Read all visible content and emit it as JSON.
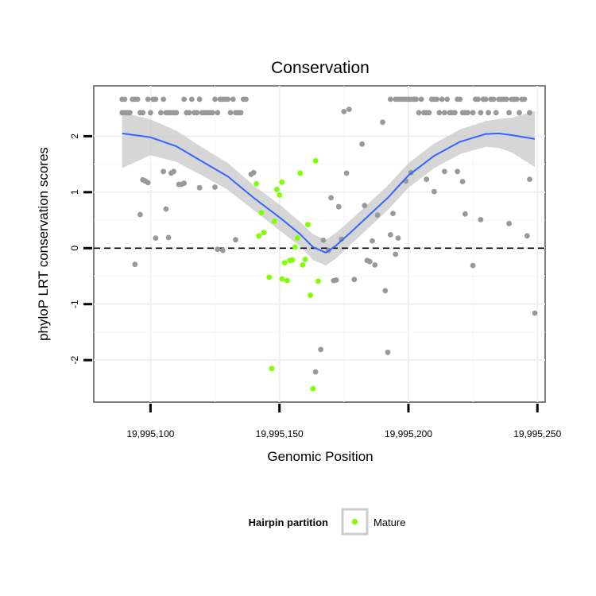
{
  "chart_data": {
    "type": "scatter",
    "title": "Conservation",
    "xlabel": "Genomic Position",
    "ylabel": "phyloP LRT conservation scores",
    "xlim": [
      19995078,
      19995253
    ],
    "ylim": [
      -2.75,
      2.9
    ],
    "x_ticks": [
      19995100,
      19995150,
      19995200,
      19995250
    ],
    "x_tick_labels": [
      "19,995,100",
      "19,995,150",
      "19,995,200",
      "19,995,250"
    ],
    "y_ticks": [
      -2,
      -1,
      0,
      1,
      2
    ],
    "y_tick_labels": [
      "-2",
      "-1",
      "0",
      "1",
      "2"
    ],
    "grid": true,
    "reference_line": {
      "y": 0,
      "style": "dashed"
    },
    "legend": {
      "title": "Hairpin partition",
      "placement": "bottom",
      "entries": [
        "Mature"
      ]
    },
    "colors": {
      "other": "#999999",
      "mature": "#80ff00",
      "smooth": "#3366ff",
      "band": "#cccccc"
    },
    "series": [
      {
        "group": "other",
        "points": [
          [
            19995089,
            2.66
          ],
          [
            19995089,
            2.42
          ],
          [
            19995090,
            2.66
          ],
          [
            19995090,
            2.42
          ],
          [
            19995091,
            2.42
          ],
          [
            19995092,
            2.42
          ],
          [
            19995093,
            2.66
          ],
          [
            19995094,
            2.66
          ],
          [
            19995095,
            2.66
          ],
          [
            19995096,
            2.42
          ],
          [
            19995097,
            2.42
          ],
          [
            19995099,
            2.66
          ],
          [
            19995100,
            2.42
          ],
          [
            19995101,
            2.66
          ],
          [
            19995102,
            2.66
          ],
          [
            19995104,
            2.42
          ],
          [
            19995105,
            2.66
          ],
          [
            19995106,
            2.42
          ],
          [
            19995107,
            2.42
          ],
          [
            19995108,
            2.42
          ],
          [
            19995109,
            2.42
          ],
          [
            19995110,
            2.42
          ],
          [
            19995113,
            2.66
          ],
          [
            19995114,
            2.42
          ],
          [
            19995115,
            2.42
          ],
          [
            19995116,
            2.66
          ],
          [
            19995117,
            2.42
          ],
          [
            19995118,
            2.42
          ],
          [
            19995119,
            2.66
          ],
          [
            19995120,
            2.42
          ],
          [
            19995121,
            2.42
          ],
          [
            19995122,
            2.42
          ],
          [
            19995123,
            2.42
          ],
          [
            19995124,
            2.42
          ],
          [
            19995125,
            2.66
          ],
          [
            19995126,
            2.42
          ],
          [
            19995127,
            2.66
          ],
          [
            19995128,
            2.66
          ],
          [
            19995129,
            2.66
          ],
          [
            19995130,
            2.66
          ],
          [
            19995131,
            2.42
          ],
          [
            19995132,
            2.66
          ],
          [
            19995133,
            2.42
          ],
          [
            19995134,
            2.42
          ],
          [
            19995135,
            2.42
          ],
          [
            19995136,
            2.66
          ],
          [
            19995137,
            2.66
          ],
          [
            19995094,
            -0.29
          ],
          [
            19995096,
            0.6
          ],
          [
            19995097,
            1.22
          ],
          [
            19995098,
            1.2
          ],
          [
            19995099,
            1.17
          ],
          [
            19995102,
            0.18
          ],
          [
            19995105,
            1.37
          ],
          [
            19995106,
            0.7
          ],
          [
            19995107,
            0.19
          ],
          [
            19995108,
            1.34
          ],
          [
            19995109,
            1.37
          ],
          [
            19995111,
            1.14
          ],
          [
            19995112,
            1.14
          ],
          [
            19995113,
            1.16
          ],
          [
            19995119,
            1.08
          ],
          [
            19995125,
            1.09
          ],
          [
            19995126,
            -0.02
          ],
          [
            19995128,
            -0.04
          ],
          [
            19995133,
            0.15
          ],
          [
            19995139,
            1.32
          ],
          [
            19995140,
            1.35
          ],
          [
            19995167,
            0.14
          ],
          [
            19995169,
            -0.04
          ],
          [
            19995170,
            0.9
          ],
          [
            19995171,
            -0.58
          ],
          [
            19995172,
            -0.57
          ],
          [
            19995173,
            0.74
          ],
          [
            19995174,
            0.16
          ],
          [
            19995175,
            2.44
          ],
          [
            19995176,
            1.34
          ],
          [
            19995177,
            2.48
          ],
          [
            19995179,
            -0.56
          ],
          [
            19995182,
            1.86
          ],
          [
            19995183,
            0.76
          ],
          [
            19995184,
            -0.22
          ],
          [
            19995185,
            -0.24
          ],
          [
            19995186,
            0.13
          ],
          [
            19995187,
            -0.3
          ],
          [
            19995188,
            0.59
          ],
          [
            19995190,
            2.25
          ],
          [
            19995191,
            -0.76
          ],
          [
            19995192,
            -1.86
          ],
          [
            19995193,
            0.24
          ],
          [
            19995194,
            0.62
          ],
          [
            19995195,
            -0.11
          ],
          [
            19995196,
            0.18
          ],
          [
            19995199,
            1.2
          ],
          [
            19995201,
            1.35
          ],
          [
            19995207,
            1.23
          ],
          [
            19995210,
            1.01
          ],
          [
            19995214,
            1.37
          ],
          [
            19995219,
            1.37
          ],
          [
            19995221,
            1.19
          ],
          [
            19995222,
            0.61
          ],
          [
            19995225,
            -0.31
          ],
          [
            19995228,
            0.51
          ],
          [
            19995239,
            0.44
          ],
          [
            19995246,
            0.22
          ],
          [
            19995247,
            1.23
          ],
          [
            19995249,
            -1.16
          ],
          [
            19995164,
            -2.21
          ],
          [
            19995166,
            -1.81
          ],
          [
            19995193,
            2.66
          ],
          [
            19995195,
            2.66
          ],
          [
            19995196,
            2.66
          ],
          [
            19995197,
            2.66
          ],
          [
            19995198,
            2.66
          ],
          [
            19995199,
            2.66
          ],
          [
            19995200,
            2.66
          ],
          [
            19995201,
            2.66
          ],
          [
            19995202,
            2.66
          ],
          [
            19995203,
            2.66
          ],
          [
            19995204,
            2.42
          ],
          [
            19995205,
            2.66
          ],
          [
            19995206,
            2.42
          ],
          [
            19995207,
            2.42
          ],
          [
            19995208,
            2.42
          ],
          [
            19995209,
            2.66
          ],
          [
            19995210,
            2.66
          ],
          [
            19995211,
            2.66
          ],
          [
            19995212,
            2.42
          ],
          [
            19995213,
            2.66
          ],
          [
            19995214,
            2.42
          ],
          [
            19995215,
            2.66
          ],
          [
            19995216,
            2.42
          ],
          [
            19995217,
            2.42
          ],
          [
            19995218,
            2.42
          ],
          [
            19995219,
            2.66
          ],
          [
            19995220,
            2.66
          ],
          [
            19995221,
            2.42
          ],
          [
            19995222,
            2.42
          ],
          [
            19995223,
            2.42
          ],
          [
            19995225,
            2.42
          ],
          [
            19995226,
            2.66
          ],
          [
            19995227,
            2.66
          ],
          [
            19995228,
            2.42
          ],
          [
            19995229,
            2.66
          ],
          [
            19995230,
            2.66
          ],
          [
            19995231,
            2.42
          ],
          [
            19995232,
            2.66
          ],
          [
            19995233,
            2.66
          ],
          [
            19995234,
            2.42
          ],
          [
            19995235,
            2.66
          ],
          [
            19995236,
            2.66
          ],
          [
            19995237,
            2.66
          ],
          [
            19995238,
            2.66
          ],
          [
            19995239,
            2.42
          ],
          [
            19995240,
            2.66
          ],
          [
            19995241,
            2.66
          ],
          [
            19995242,
            2.66
          ],
          [
            19995243,
            2.42
          ],
          [
            19995244,
            2.66
          ],
          [
            19995245,
            2.66
          ],
          [
            19995247,
            2.42
          ]
        ]
      },
      {
        "group": "mature",
        "name": "Mature",
        "points": [
          [
            19995141,
            1.15
          ],
          [
            19995142,
            0.22
          ],
          [
            19995143,
            0.63
          ],
          [
            19995144,
            0.28
          ],
          [
            19995146,
            -0.52
          ],
          [
            19995147,
            -2.15
          ],
          [
            19995148,
            0.48
          ],
          [
            19995149,
            1.05
          ],
          [
            19995150,
            0.95
          ],
          [
            19995151,
            1.18
          ],
          [
            19995151,
            -0.55
          ],
          [
            19995152,
            -0.26
          ],
          [
            19995153,
            -0.58
          ],
          [
            19995154,
            -0.22
          ],
          [
            19995155,
            -0.21
          ],
          [
            19995156,
            0.02
          ],
          [
            19995157,
            0.18
          ],
          [
            19995158,
            1.34
          ],
          [
            19995159,
            -0.3
          ],
          [
            19995160,
            -0.2
          ],
          [
            19995161,
            0.42
          ],
          [
            19995162,
            -0.84
          ],
          [
            19995163,
            -2.51
          ],
          [
            19995164,
            1.56
          ],
          [
            19995165,
            -0.59
          ]
        ]
      }
    ],
    "smooth": {
      "x": [
        19995089,
        19995100,
        19995110,
        19995120,
        19995130,
        19995140,
        19995150,
        19995158,
        19995163,
        19995168,
        19995172,
        19995178,
        19995185,
        19995192,
        19995200,
        19995210,
        19995220,
        19995230,
        19995235,
        19995240,
        19995249
      ],
      "y": [
        2.05,
        1.98,
        1.82,
        1.55,
        1.28,
        0.9,
        0.55,
        0.25,
        0.02,
        -0.08,
        0.05,
        0.3,
        0.6,
        0.9,
        1.3,
        1.65,
        1.9,
        2.04,
        2.05,
        2.02,
        1.95
      ],
      "upper": [
        2.42,
        2.3,
        2.1,
        1.8,
        1.52,
        1.12,
        0.78,
        0.47,
        0.25,
        0.15,
        0.28,
        0.52,
        0.82,
        1.12,
        1.52,
        1.87,
        2.12,
        2.27,
        2.31,
        2.33,
        2.45
      ],
      "lower": [
        1.43,
        1.66,
        1.54,
        1.3,
        1.04,
        0.68,
        0.32,
        0.03,
        -0.21,
        -0.31,
        -0.18,
        0.08,
        0.38,
        0.68,
        1.08,
        1.43,
        1.68,
        1.81,
        1.79,
        1.71,
        1.45
      ]
    }
  }
}
